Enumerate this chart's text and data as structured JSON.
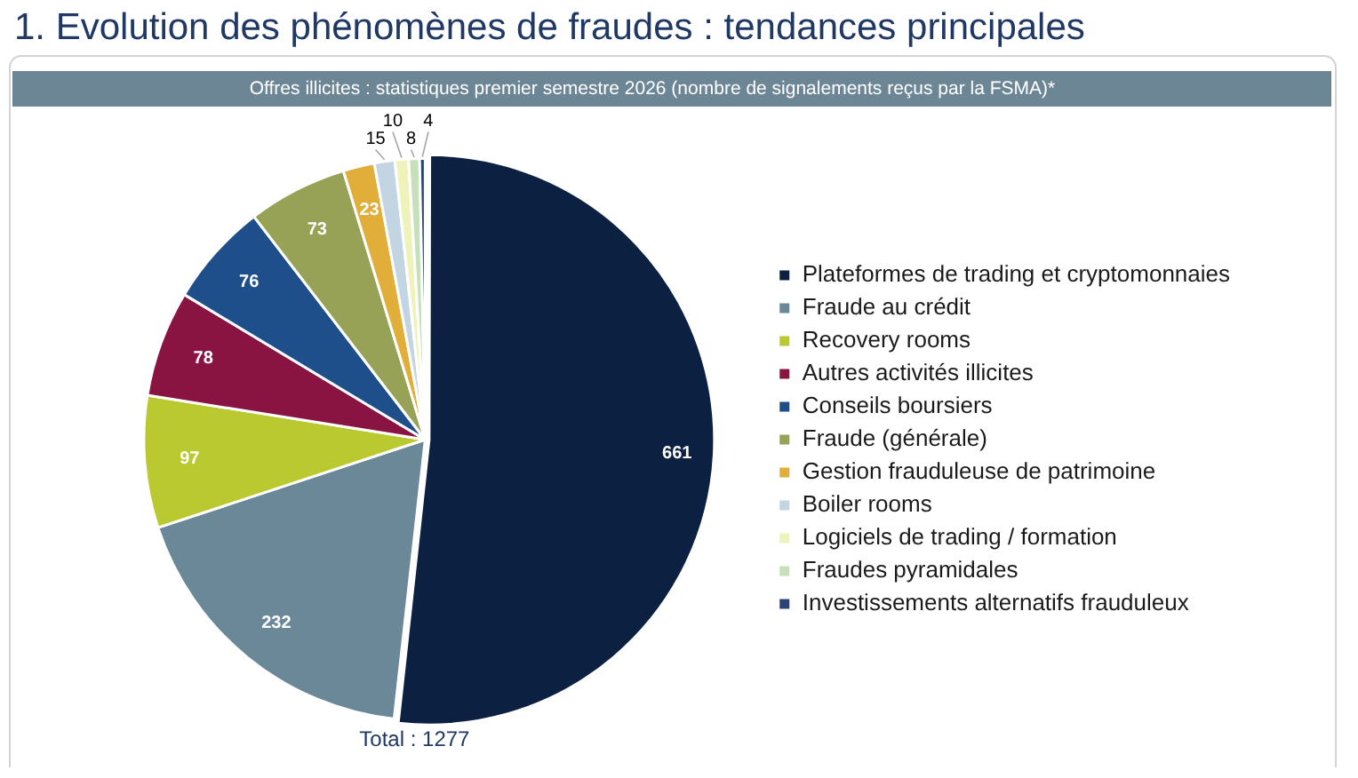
{
  "chart_data": {
    "type": "pie",
    "title": "1. Evolution des phénomènes de fraudes : tendances principales",
    "subtitle": "Offres illicites : statistiques premier semestre 2026 (nombre de signalements reçus par la FSMA)*",
    "categories": [
      "Plateformes de trading et cryptomonnaies",
      "Fraude au crédit",
      "Recovery rooms",
      "Autres activités illicites",
      "Conseils boursiers",
      "Fraude (générale)",
      "Gestion frauduleuse de patrimoine",
      "Boiler rooms",
      "Logiciels de trading / formation",
      "Fraudes pyramidales",
      "Investissements alternatifs frauduleux"
    ],
    "values": [
      661,
      232,
      97,
      78,
      76,
      73,
      23,
      15,
      10,
      8,
      4
    ],
    "colors": [
      "#0c2142",
      "#6a8898",
      "#b9c92f",
      "#8a1441",
      "#1f4f8b",
      "#98a257",
      "#e1ae39",
      "#c3d5e3",
      "#eef4b9",
      "#c6e0b9",
      "#2c4479"
    ],
    "data_labels": true,
    "legend": "right",
    "annotations": [
      "Total : 1277"
    ]
  }
}
